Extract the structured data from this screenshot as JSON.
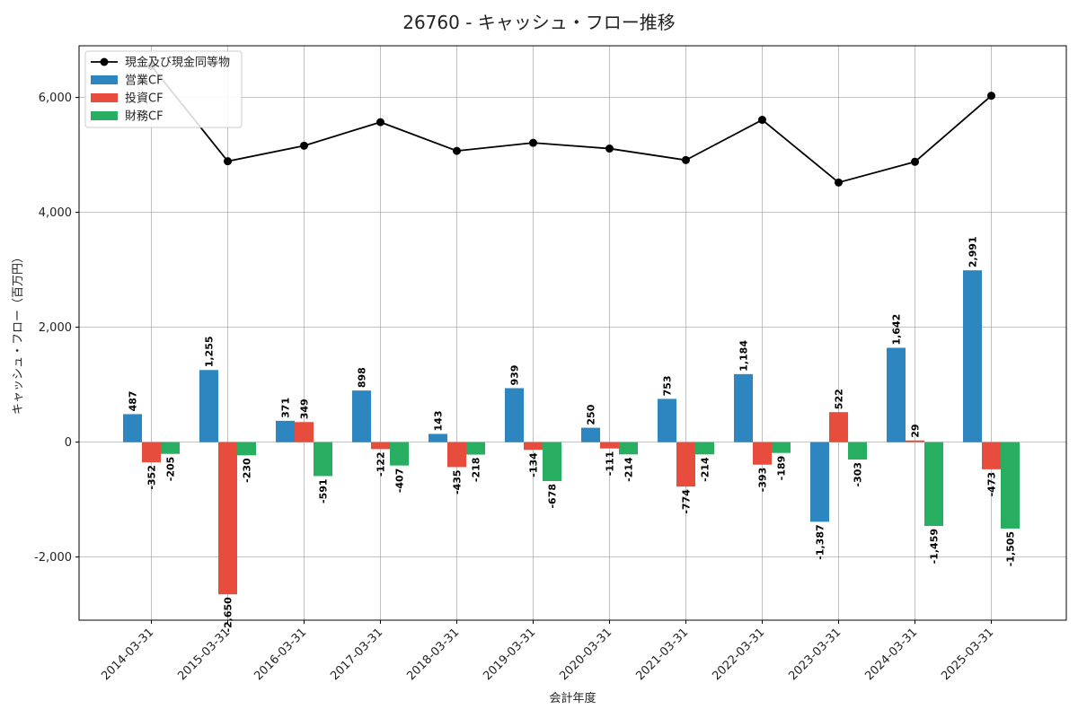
{
  "colors": {
    "operating": "#2e86c1",
    "investing": "#e74c3c",
    "financing": "#27ae60",
    "cash": "#000000"
  },
  "chart_data": {
    "type": "bar",
    "title": "26760 - キャッシュ・フロー推移",
    "xlabel": "会計年度",
    "ylabel": "キャッシュ・フロー（百万円）",
    "ylim": [
      -3100,
      6900
    ],
    "yticks": [
      -2000,
      0,
      2000,
      4000,
      6000
    ],
    "ytick_labels": [
      "-2,000",
      "0",
      "2,000",
      "4,000",
      "6,000"
    ],
    "grid": true,
    "legend_position": "top-left",
    "categories": [
      "2014-03-31",
      "2015-03-31",
      "2016-03-31",
      "2017-03-31",
      "2018-03-31",
      "2019-03-31",
      "2020-03-31",
      "2021-03-31",
      "2022-03-31",
      "2023-03-31",
      "2024-03-31",
      "2025-03-31"
    ],
    "series": [
      {
        "name": "営業CF",
        "kind": "bar",
        "color": "#2e86c1",
        "values": [
          487,
          1255,
          371,
          898,
          143,
          939,
          250,
          753,
          1184,
          -1387,
          1642,
          2991
        ],
        "labels": [
          "487",
          "1,255",
          "371",
          "898",
          "143",
          "939",
          "250",
          "753",
          "1,184",
          "-1,387",
          "1,642",
          "2,991"
        ]
      },
      {
        "name": "投資CF",
        "kind": "bar",
        "color": "#e74c3c",
        "values": [
          -352,
          -2650,
          349,
          -122,
          -435,
          -134,
          -111,
          -774,
          -393,
          522,
          29,
          -473
        ],
        "labels": [
          "-352",
          "-2,650",
          "349",
          "-122",
          "-435",
          "-134",
          "-111",
          "-774",
          "-393",
          "522",
          "29",
          "-473"
        ]
      },
      {
        "name": "財務CF",
        "kind": "bar",
        "color": "#27ae60",
        "values": [
          -205,
          -230,
          -591,
          -407,
          -218,
          -678,
          -214,
          -214,
          -189,
          -303,
          -1459,
          -1505
        ],
        "labels": [
          "-205",
          "-230",
          "-591",
          "-407",
          "-218",
          "-678",
          "-214",
          "-214",
          "-189",
          "-303",
          "-1,459",
          "-1,505"
        ]
      },
      {
        "name": "現金及び現金同等物",
        "kind": "line",
        "color": "#000000",
        "values": [
          6550,
          4890,
          5160,
          5570,
          5070,
          5210,
          5110,
          4910,
          5610,
          4520,
          4880,
          6030
        ]
      }
    ]
  }
}
